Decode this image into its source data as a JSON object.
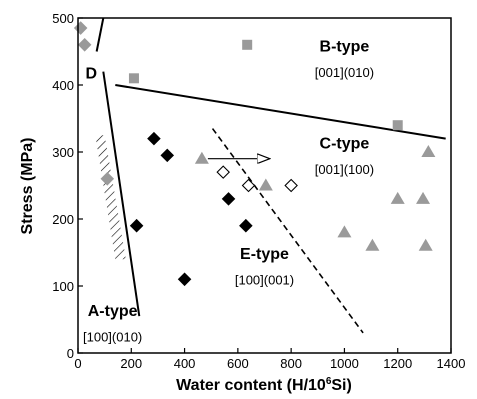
{
  "chart_data": {
    "type": "scatter",
    "title": "",
    "xlabel": "Water content (H/10",
    "xlabel_sup": "6",
    "xlabel_tail": "Si)",
    "ylabel": "Stress (MPa)",
    "xlim": [
      0,
      1400
    ],
    "ylim": [
      0,
      500
    ],
    "x_ticks": [
      0,
      200,
      400,
      600,
      800,
      1000,
      1200,
      1400
    ],
    "y_ticks": [
      0,
      100,
      200,
      300,
      400,
      500
    ],
    "grid": false,
    "colors": {
      "gray": "#9a9a9a",
      "black": "#000000",
      "hatch": "#000000"
    },
    "series": [
      {
        "marker": "diamond-gray",
        "points": [
          [
            10,
            485
          ],
          [
            25,
            460
          ],
          [
            110,
            260
          ]
        ]
      },
      {
        "marker": "square-gray",
        "points": [
          [
            210,
            410
          ],
          [
            635,
            460
          ],
          [
            1200,
            340
          ]
        ]
      },
      {
        "marker": "diamond-black",
        "points": [
          [
            285,
            320
          ],
          [
            335,
            295
          ],
          [
            220,
            190
          ],
          [
            400,
            110
          ],
          [
            565,
            230
          ],
          [
            630,
            190
          ]
        ]
      },
      {
        "marker": "diamond-open",
        "points": [
          [
            545,
            270
          ],
          [
            640,
            250
          ],
          [
            800,
            250
          ]
        ]
      },
      {
        "marker": "triangle-gray",
        "points": [
          [
            465,
            290
          ],
          [
            705,
            250
          ],
          [
            1000,
            180
          ],
          [
            1105,
            160
          ],
          [
            1200,
            230
          ],
          [
            1295,
            230
          ],
          [
            1315,
            300
          ],
          [
            1305,
            160
          ]
        ]
      }
    ],
    "boundaries": [
      {
        "style": "solid",
        "points": [
          [
            140,
            400
          ],
          [
            1380,
            320
          ]
        ]
      },
      {
        "style": "solid",
        "points": [
          [
            70,
            450
          ],
          [
            95,
            500
          ]
        ]
      },
      {
        "style": "solid",
        "points": [
          [
            95,
            420
          ],
          [
            230,
            55
          ]
        ]
      },
      {
        "style": "dashed",
        "points": [
          [
            505,
            335
          ],
          [
            1070,
            30
          ]
        ]
      }
    ],
    "arrow": {
      "from": [
        465,
        290
      ],
      "to": [
        720,
        290
      ]
    },
    "hatched_region": [
      [
        65,
        325
      ],
      [
        100,
        325
      ],
      [
        180,
        140
      ],
      [
        140,
        140
      ]
    ],
    "regions": [
      {
        "name": "D",
        "sub": "",
        "at": [
          50,
          410
        ]
      },
      {
        "name": "B-type",
        "sub": "[001](010)",
        "at": [
          1000,
          450
        ],
        "sub_at": [
          1000,
          412
        ]
      },
      {
        "name": "C-type",
        "sub": "[001](100)",
        "at": [
          1000,
          305
        ],
        "sub_at": [
          1000,
          267
        ]
      },
      {
        "name": "E-type",
        "sub": "[100](001)",
        "at": [
          700,
          140
        ],
        "sub_at": [
          700,
          102
        ]
      },
      {
        "name": "A-type",
        "sub": "[100](010)",
        "at": [
          130,
          55
        ],
        "sub_at": [
          130,
          17
        ]
      }
    ]
  }
}
